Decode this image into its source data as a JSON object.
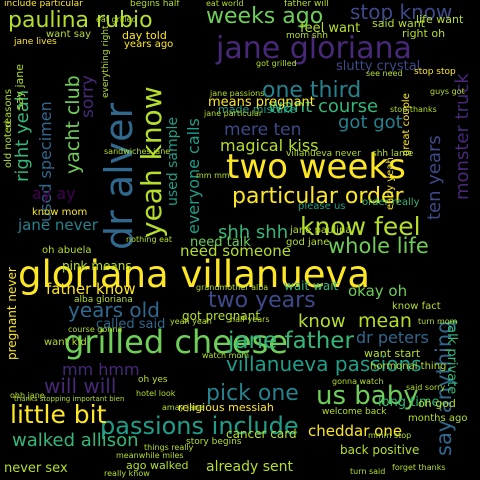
{
  "palette": {
    "background": "#000000",
    "yellow": "#fde725",
    "lime": "#b5de2b",
    "green": "#6ece58",
    "teal_green": "#35b779",
    "teal": "#1f9e89",
    "blue_teal": "#26828e",
    "blue": "#31688e",
    "indigo": "#3e4989",
    "purple": "#482878",
    "deep_purple": "#440154"
  },
  "words": {
    "gloriana_villanueva": "gloriana villanueva",
    "jane_gloriana": "jane gloriana",
    "dr_alver": "dr alver",
    "two_weeks": "two weeks",
    "grilled_cheese": "grilled cheese",
    "yeah_know": "yeah know",
    "passions_include": "passions include",
    "little_bit": "little bit",
    "us_baby": "us baby",
    "weeks_ago": "weeks ago",
    "jane_father": "jane father",
    "paulina_rubio": "paulina rubio",
    "know_feel": "know feel",
    "particular_order": "particular order",
    "one_third": "one third",
    "villanueva_passions": "villanueva passions",
    "two_years": "two years",
    "pick_one": "pick one",
    "whole_life": "whole life",
    "say_anything": "say anything",
    "stop_know": "stop know",
    "years_old": "years old",
    "will_will": "will will",
    "walked_allison": "walked allison",
    "yacht_club": "yacht club",
    "right_yeah": "right yeah",
    "monster_truck": "monster truck",
    "ten_years": "ten years",
    "want_course": "want course",
    "mere_ten": "mere ten",
    "magical_kiss": "magical kiss",
    "got_got": "got got",
    "everyone_calls": "everyone calls",
    "used_specimen": "used specimen",
    "shh_shh": "shh shh",
    "need_someone": "need someone",
    "mean": "mean",
    "know": "know",
    "okay_oh": "okay oh",
    "ay_ay": "ay ay",
    "dr_peters": "dr peters",
    "mm_hmm": "mm hmm",
    "father_know": "father know",
    "jane_never": "jane never",
    "pink_means": "pink means",
    "used_sample": "used sample",
    "already_sent": "already sent",
    "never_sex": "never sex",
    "cancer_card": "cancer card",
    "cheddar_one": "cheddar one",
    "back_positive": "back positive",
    "long_time": "long time",
    "talk_private": "talk private",
    "wait_wait": "wait wait",
    "got_pregnant": "got pregnant",
    "called_said": "called said",
    "means_pregnant": "means pregnant",
    "feel_want": "feel want",
    "slutty_crystal": "slutty crystal",
    "need_talk": "need talk",
    "know_mom": "know mom",
    "sorry": "sorry",
    "want_kid": "want kid",
    "pregnant_never": "pregnant never",
    "religious_messiah": "religious messiah",
    "want_start": "want start",
    "hormonal_thing": "hormonal thing",
    "great_couple": "great couple",
    "early_yeah": "early yeah",
    "order_really": "order really",
    "please_us": "please us",
    "god_jane": "god jane",
    "jane_paulina": "jane paulina",
    "know_fact": "know fact",
    "said_want": "said want",
    "life_want": "life want",
    "right_oh": "right oh",
    "stop_stop": "stop stop",
    "years_ago": "years ago",
    "day_told": "day told",
    "include_particular": "include particular",
    "jane_lives": "jane lives",
    "want_say": "want say",
    "oh_god": "oh god",
    "mom_shh": "mom shh",
    "father_will": "father will",
    "begins_half": "begins half",
    "old_noted": "old noted",
    "reasons": "reasons",
    "hotel_look": "hotel look",
    "ago_walked": "ago walked",
    "really_know": "really know",
    "story_begins": "story begins",
    "mmm_stop": "mmm stop",
    "forget_thanks": "forget thanks",
    "gonna_watch": "gonna watch",
    "welcome_back": "welcome back",
    "months_ago": "months ago",
    "turn_mom": "turn mom",
    "oh_abuela": "oh abuela",
    "alba_gloriana": "alba gloriana",
    "grandmother_alba": "grandmother alba",
    "course_gonna": "course gonna",
    "made_mistake": "made mistake",
    "sandwiches_jane": "sandwiches jane",
    "jane_passions": "jane passions",
    "jane_particular": "jane particular",
    "got_grilled": "got grilled",
    "villanueva_never": "villanueva never",
    "shh_lame": "shh lame",
    "see_need": "see need",
    "guys_got": "guys got",
    "say_jane": "say jane",
    "everything_right": "everything right",
    "eat_grilled": "eat grilled",
    "nothing_eat": "nothing eat",
    "half_years": "half years",
    "mm_mm": "mm mm",
    "said_sorry": "said sorry",
    "meanwhile_miles": "meanwhile miles",
    "ohh_jane": "ohh jane",
    "yeah_yeah": "yeah yeah",
    "stop_thanks": "stop thanks",
    "thanks_stopping": "thanks stopping important bien",
    "amay_jane": "amay jane",
    "eat_world": "eat world",
    "watch_mom": "watch mom",
    "things_really": "things really",
    "turn_said": "turn said",
    "oh_yes": "oh yes"
  }
}
